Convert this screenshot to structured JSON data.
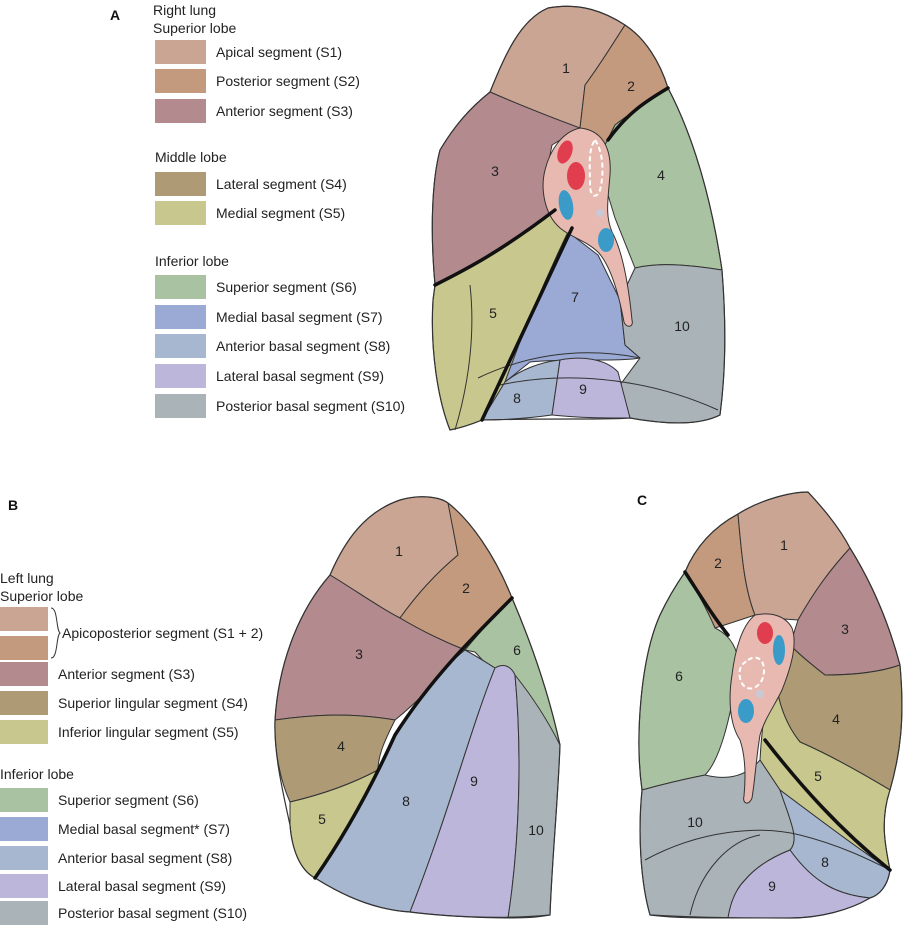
{
  "colors": {
    "S1": "#caa593",
    "S2": "#c49a7f",
    "S3": "#b38b8e",
    "S4": "#ae9b76",
    "S5": "#c8c78d",
    "S6": "#a9c2a1",
    "S7": "#9aaad5",
    "S8": "#a6b7cf",
    "S9": "#bcb6da",
    "S10": "#a9b3b8",
    "hilum": "#e8b9b0",
    "artery": "#e03d4f",
    "vein": "#3a9bc9"
  },
  "panels": {
    "A": {
      "letter": "A",
      "heading": "Right lung",
      "groups": [
        {
          "title": "Superior lobe",
          "items": [
            {
              "color": "S1",
              "label": "Apical segment (S1)"
            },
            {
              "color": "S2",
              "label": "Posterior segment (S2)"
            },
            {
              "color": "S3",
              "label": "Anterior segment (S3)"
            }
          ]
        },
        {
          "title": "Middle lobe",
          "items": [
            {
              "color": "S4",
              "label": "Lateral segment (S4)"
            },
            {
              "color": "S5",
              "label": "Medial segment (S5)"
            }
          ]
        },
        {
          "title": "Inferior lobe",
          "items": [
            {
              "color": "S6",
              "label": "Superior segment (S6)"
            },
            {
              "color": "S7",
              "label": "Medial basal segment (S7)"
            },
            {
              "color": "S8",
              "label": "Anterior basal segment (S8)"
            },
            {
              "color": "S9",
              "label": "Lateral basal segment (S9)"
            },
            {
              "color": "S10",
              "label": "Posterior basal segment (S10)"
            }
          ]
        }
      ],
      "numbers": [
        "1",
        "2",
        "3",
        "4",
        "5",
        "7",
        "8",
        "9",
        "10"
      ]
    },
    "B": {
      "letter": "B",
      "heading": "Left lung",
      "groups": [
        {
          "title": "Superior lobe",
          "items": [
            {
              "color": "S1",
              "label": "Apicoposterior segment (S1 + 2)",
              "pair": "S2"
            },
            {
              "color": "S3",
              "label": "Anterior segment (S3)"
            },
            {
              "color": "S4",
              "label": "Superior lingular segment (S4)"
            },
            {
              "color": "S5",
              "label": "Inferior lingular segment (S5)"
            }
          ]
        },
        {
          "title": "Inferior lobe",
          "items": [
            {
              "color": "S6",
              "label": "Superior segment (S6)"
            },
            {
              "color": "S7",
              "label": "Medial basal segment* (S7)"
            },
            {
              "color": "S8",
              "label": "Anterior basal segment (S8)"
            },
            {
              "color": "S9",
              "label": "Lateral basal segment (S9)"
            },
            {
              "color": "S10",
              "label": "Posterior basal segment (S10)"
            }
          ]
        }
      ],
      "numbers": [
        "1",
        "2",
        "3",
        "4",
        "5",
        "6",
        "8",
        "9",
        "10"
      ]
    },
    "C": {
      "letter": "C",
      "numbers": [
        "1",
        "2",
        "3",
        "4",
        "5",
        "6",
        "8",
        "9",
        "10"
      ]
    }
  }
}
